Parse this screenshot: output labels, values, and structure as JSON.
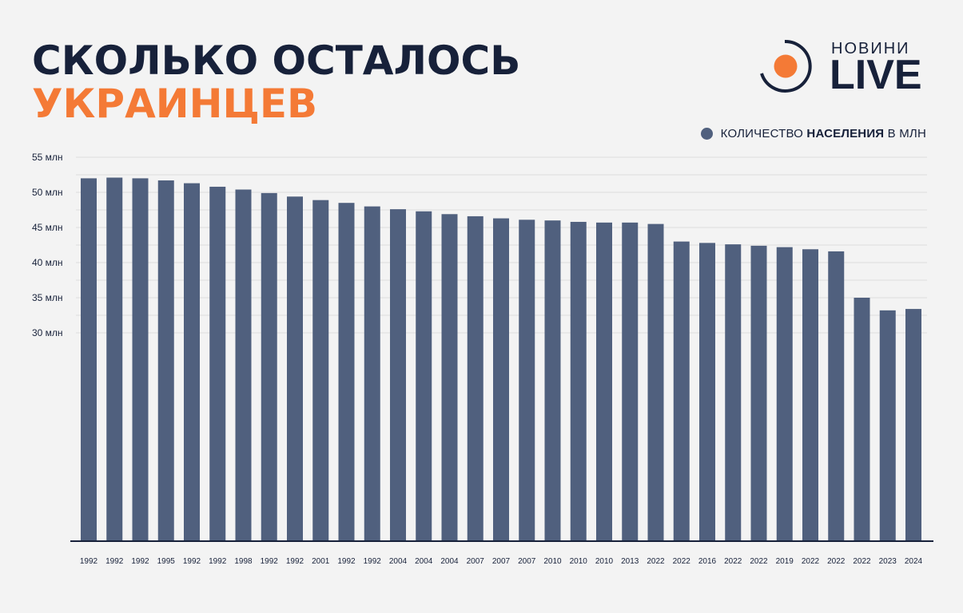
{
  "header": {
    "title_line1": "СКОЛЬКО ОСТАЛОСЬ",
    "title_line2": "УКРАИНЦЕВ"
  },
  "logo": {
    "top_text": "НОВИНИ",
    "main_text": "LIVE"
  },
  "legend": {
    "prefix": "КОЛИЧЕСТВО ",
    "bold": "НАСЕЛЕНИЯ",
    "suffix": " В МЛН"
  },
  "colors": {
    "bar": "#50607e",
    "title_dark": "#17213a",
    "accent": "#f47a36",
    "background": "#f3f3f3"
  },
  "chart_data": {
    "type": "bar",
    "title": "СКОЛЬКО ОСТАЛОСЬ УКРАИНЦЕВ",
    "xlabel": "",
    "ylabel": "",
    "grid": true,
    "legend_position": "top-right",
    "y_ticks": [
      {
        "value": 55,
        "label": "55 млн"
      },
      {
        "value": 50,
        "label": "50 млн"
      },
      {
        "value": 45,
        "label": "45 млн"
      },
      {
        "value": 40,
        "label": "40 млн"
      },
      {
        "value": 35,
        "label": "35 млн"
      },
      {
        "value": 30,
        "label": "30 млн"
      }
    ],
    "categories": [
      "1992",
      "1992",
      "1992",
      "1995",
      "1992",
      "1992",
      "1998",
      "1992",
      "1992",
      "2001",
      "1992",
      "1992",
      "2004",
      "2004",
      "2004",
      "2007",
      "2007",
      "2007",
      "2010",
      "2010",
      "2010",
      "2013",
      "2022",
      "2022",
      "2016",
      "2022",
      "2022",
      "2019",
      "2022",
      "2022",
      "2022",
      "2023",
      "2024"
    ],
    "series": [
      {
        "name": "количество населения в млн",
        "values": [
          52.0,
          52.1,
          52.0,
          51.7,
          51.3,
          50.8,
          50.4,
          49.9,
          49.4,
          48.9,
          48.5,
          48.0,
          47.6,
          47.3,
          46.9,
          46.6,
          46.3,
          46.1,
          46.0,
          45.8,
          45.7,
          45.7,
          45.5,
          43.0,
          42.8,
          42.6,
          42.4,
          42.2,
          41.9,
          41.6,
          35.0,
          33.2,
          33.4
        ]
      }
    ]
  }
}
